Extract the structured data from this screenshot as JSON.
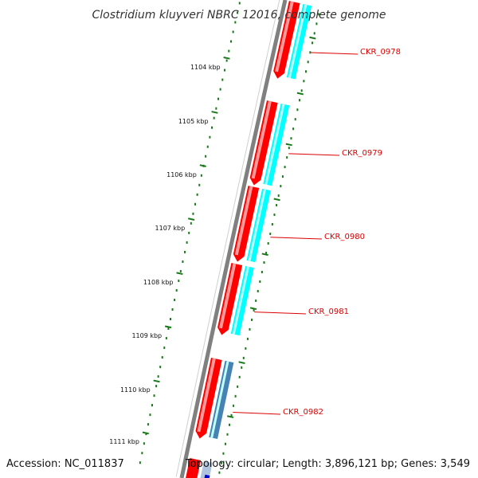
{
  "title": "Clostridium kluyveri NBRC 12016, complete genome",
  "footer": {
    "accession": "Accession: NC_011837",
    "summary": "Topology: circular; Length: 3,896,121 bp; Genes: 3,549"
  },
  "colors": {
    "backbone": "#808080",
    "tick": "#1a7a1a",
    "forward_gene": "#ff0000",
    "cds": "#00ffff",
    "cds_alt": "#4682b4",
    "label": "#dd0000"
  },
  "scale": {
    "ticks": [
      {
        "label": "1104 kbp"
      },
      {
        "label": "1105 kbp"
      },
      {
        "label": "1106 kbp"
      },
      {
        "label": "1107 kbp"
      },
      {
        "label": "1108 kbp"
      },
      {
        "label": "1109 kbp"
      },
      {
        "label": "1110 kbp"
      },
      {
        "label": "1111 kbp"
      }
    ]
  },
  "genes": [
    {
      "name": "CKR_0978",
      "feature_color": "cds"
    },
    {
      "name": "CKR_0979",
      "feature_color": "cds"
    },
    {
      "name": "CKR_0980",
      "feature_color": "cds"
    },
    {
      "name": "CKR_0981",
      "feature_color": "cds"
    },
    {
      "name": "CKR_0982",
      "feature_color": "cds_alt"
    }
  ]
}
